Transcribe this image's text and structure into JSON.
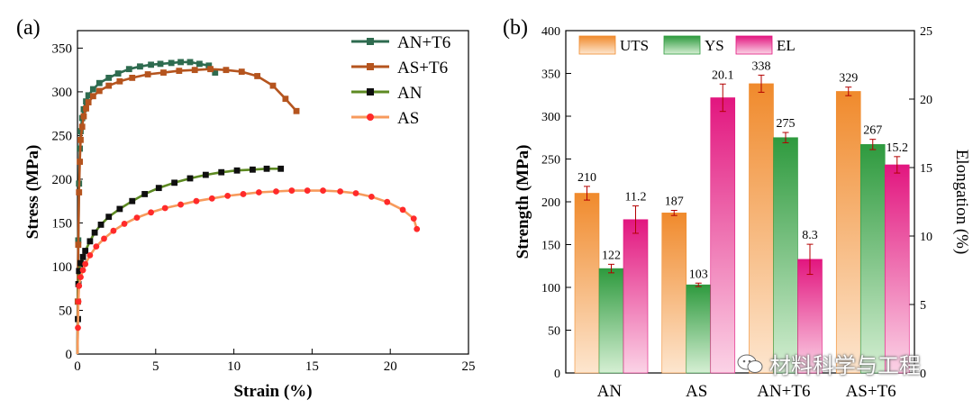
{
  "panel_a_label": "(a)",
  "panel_b_label": "(b)",
  "watermark_text": "材料科学与工程",
  "chart_data": [
    {
      "type": "line",
      "xlabel": "Strain (%)",
      "ylabel": "Stress (MPa)",
      "xlim": [
        0,
        25
      ],
      "ylim": [
        0,
        370
      ],
      "xticks": [
        0,
        5,
        10,
        15,
        20,
        25
      ],
      "yticks": [
        0,
        50,
        100,
        150,
        200,
        250,
        300,
        350
      ],
      "legend_position": "top-right",
      "series": [
        {
          "name": "AN+T6",
          "color": "#2e6b4f",
          "marker": "square",
          "x": [
            0,
            0.02,
            0.05,
            0.1,
            0.15,
            0.2,
            0.3,
            0.4,
            0.55,
            0.7,
            1.0,
            1.4,
            2.0,
            2.6,
            3.3,
            4.0,
            4.7,
            5.3,
            6.0,
            6.6,
            7.2,
            7.8,
            8.4,
            8.8
          ],
          "y": [
            0,
            60,
            130,
            195,
            235,
            255,
            270,
            280,
            289,
            296,
            303,
            310,
            316,
            321,
            326,
            329,
            331,
            332,
            333,
            334,
            334,
            332,
            330,
            322
          ]
        },
        {
          "name": "AS+T6",
          "color": "#b5541e",
          "marker": "square",
          "x": [
            0,
            0.02,
            0.05,
            0.1,
            0.15,
            0.2,
            0.3,
            0.4,
            0.55,
            0.7,
            1.0,
            1.4,
            2.0,
            2.7,
            3.5,
            4.5,
            5.5,
            6.5,
            7.5,
            8.5,
            9.5,
            10.5,
            11.5,
            12.5,
            13.3,
            14.0
          ],
          "y": [
            0,
            60,
            125,
            185,
            220,
            245,
            260,
            272,
            281,
            288,
            295,
            301,
            307,
            312,
            316,
            320,
            322,
            324,
            325,
            326,
            325,
            323,
            318,
            307,
            292,
            278
          ]
        },
        {
          "name": "AN",
          "color": "#0f0f0f",
          "line_color": "#5d8a22",
          "marker": "square",
          "x": [
            0,
            0.03,
            0.06,
            0.1,
            0.2,
            0.35,
            0.5,
            0.8,
            1.1,
            1.5,
            2.0,
            2.7,
            3.5,
            4.3,
            5.2,
            6.2,
            7.2,
            8.2,
            9.2,
            10.2,
            11.2,
            12.1,
            13.0
          ],
          "y": [
            0,
            40,
            80,
            95,
            104,
            111,
            118,
            129,
            139,
            148,
            157,
            166,
            175,
            183,
            190,
            196,
            201,
            205,
            208,
            210,
            211,
            212,
            212
          ]
        },
        {
          "name": "AS",
          "color": "#ff2a2a",
          "line_color": "#f79a5c",
          "marker": "circle",
          "x": [
            0,
            0.03,
            0.06,
            0.1,
            0.2,
            0.35,
            0.5,
            0.8,
            1.2,
            1.7,
            2.3,
            3.0,
            3.8,
            4.7,
            5.6,
            6.6,
            7.6,
            8.6,
            9.6,
            10.6,
            11.6,
            12.7,
            13.7,
            14.7,
            15.7,
            16.8,
            17.8,
            18.8,
            19.8,
            20.8,
            21.5,
            21.7
          ],
          "y": [
            0,
            30,
            60,
            78,
            88,
            96,
            103,
            113,
            123,
            132,
            141,
            149,
            156,
            162,
            167,
            171,
            175,
            178,
            181,
            183,
            185,
            186,
            187,
            187,
            187,
            186,
            184,
            180,
            174,
            165,
            155,
            143
          ]
        }
      ]
    },
    {
      "type": "bar",
      "categories": [
        "AN",
        "AS",
        "AN+T6",
        "AS+T6"
      ],
      "ylabel": "Strength (MPa)",
      "y2label": "Elongation (%)",
      "ylim": [
        0,
        400
      ],
      "y2lim": [
        0,
        25
      ],
      "yticks": [
        0,
        50,
        100,
        150,
        200,
        250,
        300,
        350,
        400
      ],
      "y2ticks": [
        0,
        5,
        10,
        15,
        20,
        25
      ],
      "legend_position": "top-left",
      "series": [
        {
          "name": "UTS",
          "axis": "left",
          "color": "#f08a2c",
          "light": "#fde6cf",
          "values": [
            210,
            187,
            338,
            329
          ],
          "errors": [
            8,
            3,
            10,
            5
          ],
          "labels": [
            "210",
            "187",
            "338",
            "329"
          ]
        },
        {
          "name": "YS",
          "axis": "left",
          "color": "#2e9a3e",
          "light": "#d5efd3",
          "values": [
            122,
            103,
            275,
            267
          ],
          "errors": [
            5,
            2,
            6,
            6
          ],
          "labels": [
            "122",
            "103",
            "275",
            "267"
          ]
        },
        {
          "name": "EL",
          "axis": "right",
          "color": "#e2167f",
          "light": "#fbd3e6",
          "values": [
            11.2,
            20.1,
            8.3,
            15.2
          ],
          "errors": [
            1.0,
            1.0,
            1.1,
            0.6
          ],
          "labels": [
            "11.2",
            "20.1",
            "8.3",
            "15.2"
          ]
        }
      ]
    }
  ]
}
